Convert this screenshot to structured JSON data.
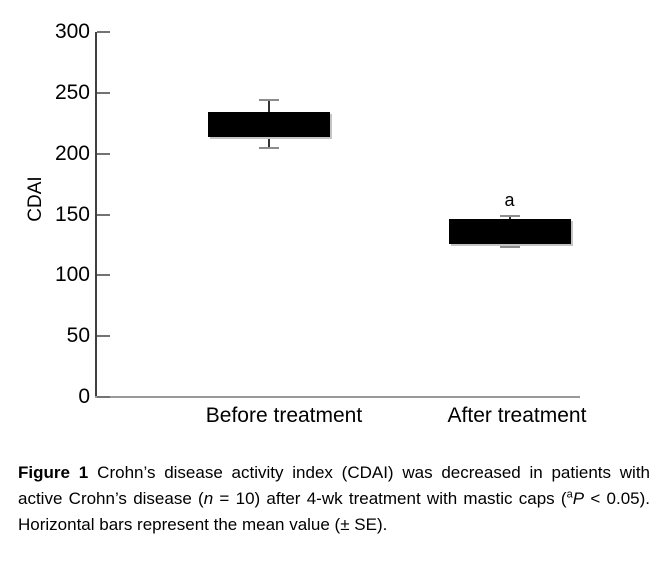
{
  "figure_title": "Figure 1",
  "colors": {
    "background": "#ffffff",
    "bar": "#000000",
    "bar_shadow": "#c4c4c4",
    "y_axis": "#404040",
    "x_axis": "#999999",
    "tick": "#737373",
    "error_line": "#333333",
    "error_cap": "#8c8c8c",
    "text": "#000000"
  },
  "chart_data": {
    "type": "bar",
    "subtype": "mean-with-se-whiskers",
    "title": "",
    "xlabel": "",
    "ylabel": "CDAI",
    "ylim": [
      0,
      300
    ],
    "yticks": [
      0,
      50,
      100,
      150,
      200,
      250,
      300
    ],
    "grid": false,
    "legend": false,
    "categories": [
      "Before treatment",
      "After treatment"
    ],
    "series": [
      {
        "name": "CDAI mean",
        "values": [
          224,
          136
        ],
        "se": [
          20,
          13
        ],
        "error_upper": [
          244,
          149
        ],
        "error_lower": [
          205,
          123
        ]
      }
    ],
    "annotations": [
      {
        "text": "a",
        "category": "After treatment"
      }
    ]
  },
  "caption": {
    "line1_label": "Figure 1",
    "line1_text": "Crohn’s disease activity index (CDAI) was decreased in patients with",
    "line2_pre": "active Crohn’s disease (",
    "line2_n": "n",
    "line2_mid": " = 10) after 4-wk treatment with mastic caps (",
    "line2_sup": "a",
    "line2_p": "P",
    "line2_post": " < 0.05).",
    "line3": "Horizontal bars represent the mean value (± SE)."
  }
}
